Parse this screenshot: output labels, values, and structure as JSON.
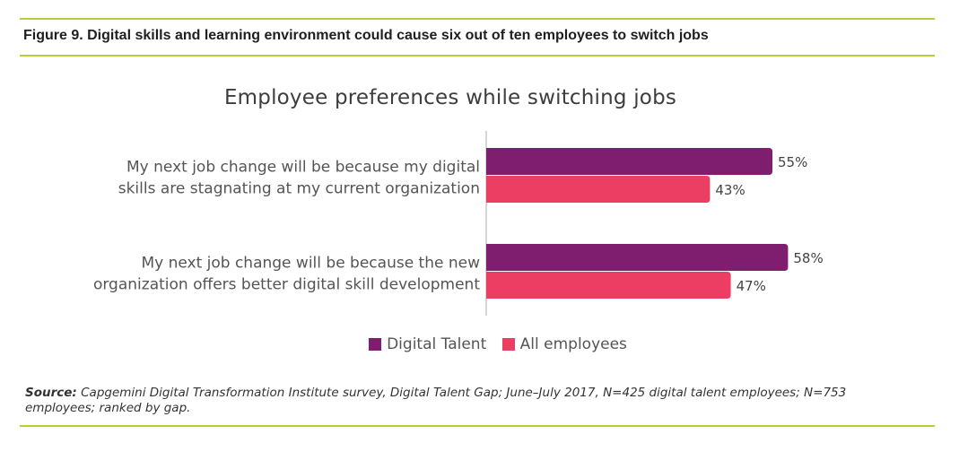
{
  "figure_title": "Figure 9. Digital skills and learning environment could cause six out of ten employees to switch jobs",
  "colors": {
    "rule": "#b5cf3a",
    "digital_talent": "#7f1e6e",
    "all_employees": "#ec3d63",
    "axis": "#c8c8c8"
  },
  "chart_data": {
    "type": "bar",
    "orientation": "horizontal",
    "title": "Employee preferences while switching jobs",
    "categories": [
      [
        "My next job change will be because my digital",
        "skills are stagnating at my current organization"
      ],
      [
        "My next job change will be because the new",
        "organization offers better digital skill development"
      ]
    ],
    "series": [
      {
        "name": "Digital Talent",
        "values": [
          55,
          58
        ],
        "labels": [
          "55%",
          "58%"
        ],
        "color": "#7f1e6e"
      },
      {
        "name": "All employees",
        "values": [
          43,
          47
        ],
        "labels": [
          "43%",
          "47%"
        ],
        "color": "#ec3d63"
      }
    ],
    "unit": "%",
    "xlim": [
      0,
      100
    ],
    "grid": false,
    "legend": "bottom-center"
  },
  "source": {
    "label": "Source:",
    "text": " Capgemini Digital Transformation Institute survey, Digital Talent Gap; June–July 2017, N=425 digital talent employees; N=753 employees; ranked by gap."
  }
}
